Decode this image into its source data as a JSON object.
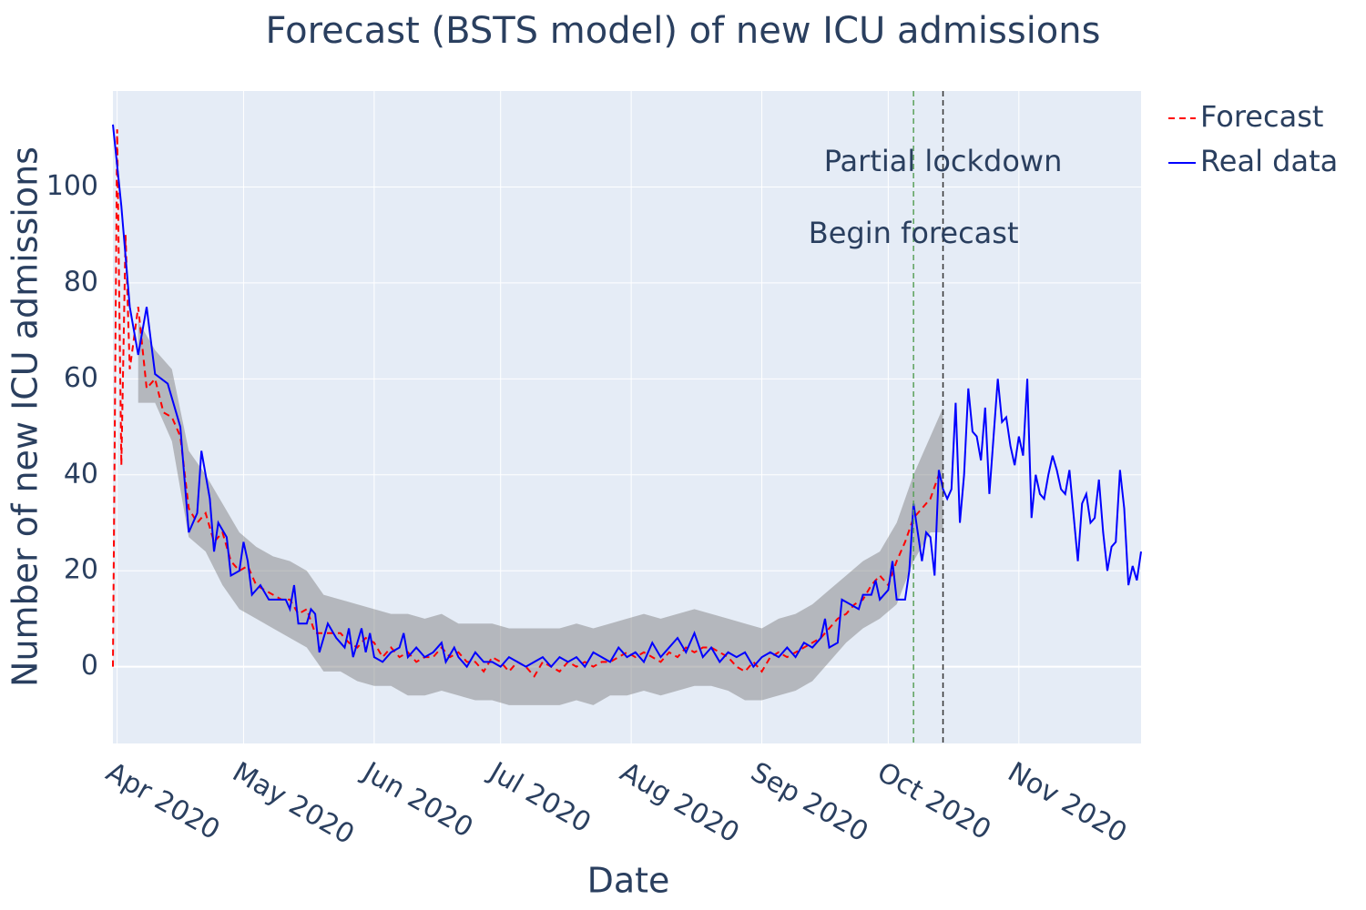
{
  "chart_data": {
    "type": "line",
    "title": "Forecast (BSTS model) of new ICU admissions",
    "x_label": "Date",
    "y_label": "Number of new ICU admissions",
    "xlim": [
      90,
      334
    ],
    "ylim": [
      -16,
      120
    ],
    "xticks": [
      {
        "value": 91,
        "label": "Apr 2020"
      },
      {
        "value": 121,
        "label": "May 2020"
      },
      {
        "value": 152,
        "label": "Jun 2020"
      },
      {
        "value": 182,
        "label": "Jul 2020"
      },
      {
        "value": 213,
        "label": "Aug 2020"
      },
      {
        "value": 244,
        "label": "Sep 2020"
      },
      {
        "value": 274,
        "label": "Oct 2020"
      },
      {
        "value": 305,
        "label": "Nov 2020"
      }
    ],
    "yticks": [
      0,
      20,
      40,
      60,
      80,
      100
    ],
    "grid": true,
    "legend": "outside-right",
    "band": {
      "color": "rgba(120,120,120,0.45)",
      "x": [
        96,
        100,
        104,
        108,
        112,
        116,
        120,
        124,
        128,
        132,
        136,
        140,
        144,
        148,
        152,
        156,
        160,
        164,
        168,
        172,
        176,
        180,
        184,
        188,
        192,
        196,
        200,
        204,
        208,
        212,
        216,
        220,
        224,
        228,
        232,
        236,
        240,
        244,
        248,
        252,
        256,
        260,
        264,
        268,
        272,
        276,
        280,
        284,
        287
      ],
      "upper": [
        72,
        66,
        62,
        45,
        40,
        34,
        28,
        25,
        23,
        22,
        20,
        15,
        14,
        13,
        12,
        11,
        11,
        10,
        11,
        9,
        9,
        9,
        8,
        8,
        8,
        8,
        9,
        8,
        9,
        10,
        11,
        10,
        11,
        12,
        11,
        10,
        9,
        8,
        10,
        11,
        13,
        16,
        19,
        22,
        24,
        30,
        40,
        48,
        54
      ],
      "lower": [
        55,
        55,
        47,
        27,
        24,
        17,
        12,
        10,
        8,
        6,
        4,
        -1,
        -1,
        -3,
        -4,
        -4,
        -6,
        -6,
        -5,
        -6,
        -7,
        -7,
        -8,
        -8,
        -8,
        -8,
        -7,
        -8,
        -6,
        -6,
        -5,
        -6,
        -5,
        -4,
        -4,
        -5,
        -7,
        -7,
        -6,
        -5,
        -3,
        1,
        5,
        8,
        10,
        13,
        22,
        28,
        28
      ]
    },
    "series": [
      {
        "name": "Forecast",
        "color": "#ff0000",
        "dash": "dash",
        "x": [
          90,
          91,
          92,
          93,
          94,
          96,
          98,
          100,
          102,
          104,
          106,
          108,
          110,
          112,
          114,
          116,
          118,
          120,
          122,
          124,
          126,
          128,
          130,
          132,
          134,
          136,
          138,
          140,
          142,
          144,
          146,
          148,
          150,
          152,
          154,
          156,
          158,
          160,
          162,
          164,
          166,
          168,
          170,
          172,
          174,
          176,
          178,
          180,
          182,
          184,
          186,
          188,
          190,
          192,
          194,
          196,
          198,
          200,
          202,
          204,
          206,
          208,
          210,
          212,
          214,
          216,
          218,
          220,
          222,
          224,
          226,
          228,
          230,
          232,
          234,
          236,
          238,
          240,
          242,
          244,
          246,
          248,
          250,
          252,
          254,
          256,
          258,
          260,
          262,
          264,
          266,
          268,
          270,
          272,
          274,
          276,
          278,
          280,
          282,
          284,
          286,
          287
        ],
        "values": [
          0,
          112,
          42,
          90,
          62,
          75,
          58,
          60,
          53,
          52,
          48,
          33,
          30,
          32,
          26,
          28,
          22,
          20,
          21,
          17,
          16,
          15,
          14,
          14,
          11,
          12,
          7,
          7,
          7,
          7,
          5,
          4,
          6,
          5,
          2,
          4,
          2,
          3,
          1,
          2,
          2,
          4,
          2,
          3,
          1,
          1,
          -1,
          2,
          1,
          -1,
          1,
          0,
          -2,
          1,
          0,
          -1,
          1,
          0,
          1,
          0,
          1,
          1,
          2,
          3,
          2,
          3,
          2,
          1,
          3,
          2,
          4,
          3,
          4,
          4,
          3,
          2,
          0,
          -1,
          1,
          -1,
          2,
          3,
          2,
          3,
          4,
          5,
          6,
          8,
          10,
          11,
          13,
          14,
          17,
          19,
          17,
          22,
          26,
          31,
          33,
          35,
          40,
          38
        ]
      },
      {
        "name": "Real data",
        "color": "#0000ff",
        "dash": "solid",
        "x": [
          90,
          92,
          94,
          96,
          98,
          100,
          103,
          106,
          108,
          110,
          111,
          113,
          114,
          115,
          117,
          118,
          120,
          121,
          122,
          123,
          125,
          127,
          129,
          131,
          132,
          133,
          134,
          136,
          137,
          138,
          139,
          141,
          143,
          145,
          146,
          147,
          149,
          150,
          151,
          152,
          154,
          156,
          158,
          159,
          160,
          162,
          164,
          166,
          168,
          169,
          171,
          172,
          174,
          176,
          178,
          180,
          182,
          184,
          186,
          188,
          190,
          192,
          194,
          196,
          198,
          200,
          202,
          204,
          206,
          208,
          210,
          212,
          214,
          216,
          218,
          220,
          222,
          224,
          226,
          228,
          230,
          232,
          234,
          236,
          238,
          240,
          242,
          244,
          246,
          248,
          250,
          252,
          254,
          256,
          258,
          259,
          260,
          262,
          263,
          265,
          267,
          268,
          270,
          271,
          272,
          274,
          275,
          276,
          278,
          279,
          280,
          281,
          282,
          283,
          284,
          285,
          286,
          287,
          288,
          289,
          290,
          291,
          292,
          293,
          294,
          295,
          296,
          297,
          298,
          299,
          300,
          301,
          302,
          303,
          304,
          305,
          306,
          307,
          308,
          309,
          310,
          311,
          312,
          313,
          314,
          315,
          316,
          317,
          319,
          320,
          321,
          322,
          323,
          324,
          325,
          326,
          327,
          328,
          329,
          330,
          331,
          332,
          333,
          334
        ],
        "values": [
          113,
          96,
          75,
          65,
          75,
          61,
          59,
          50,
          28,
          32,
          45,
          35,
          24,
          30,
          27,
          19,
          20,
          26,
          22,
          15,
          17,
          14,
          14,
          14,
          12,
          17,
          9,
          9,
          12,
          11,
          3,
          9,
          6,
          4,
          8,
          2,
          8,
          3,
          7,
          2,
          1,
          3,
          4,
          7,
          2,
          4,
          2,
          3,
          5,
          1,
          4,
          2,
          0,
          3,
          1,
          1,
          0,
          2,
          1,
          0,
          1,
          2,
          0,
          2,
          1,
          2,
          0,
          3,
          2,
          1,
          4,
          2,
          3,
          1,
          5,
          2,
          4,
          6,
          3,
          7,
          2,
          4,
          1,
          3,
          2,
          3,
          0,
          2,
          3,
          2,
          4,
          2,
          5,
          4,
          6,
          10,
          4,
          5,
          14,
          13,
          12,
          15,
          15,
          18,
          14,
          16,
          22,
          14,
          14,
          20,
          34,
          28,
          22,
          28,
          27,
          19,
          41,
          37,
          35,
          37,
          55,
          30,
          40,
          58,
          49,
          48,
          43,
          54,
          36,
          48,
          60,
          51,
          52,
          46,
          42,
          48,
          44,
          60,
          31,
          40,
          36,
          35,
          40,
          44,
          41,
          37,
          36,
          41,
          22,
          34,
          36,
          30,
          31,
          39,
          28,
          20,
          25,
          26,
          41,
          33,
          17,
          21,
          18,
          24
        ]
      }
    ],
    "vlines": [
      {
        "x": 280,
        "color": "#5aa05a"
      },
      {
        "x": 287,
        "color": "#333333"
      }
    ],
    "annotations": [
      {
        "text": "Partial lockdown",
        "x": 287,
        "y": 105
      },
      {
        "text": "Begin forecast",
        "x": 280,
        "y": 90
      }
    ]
  }
}
